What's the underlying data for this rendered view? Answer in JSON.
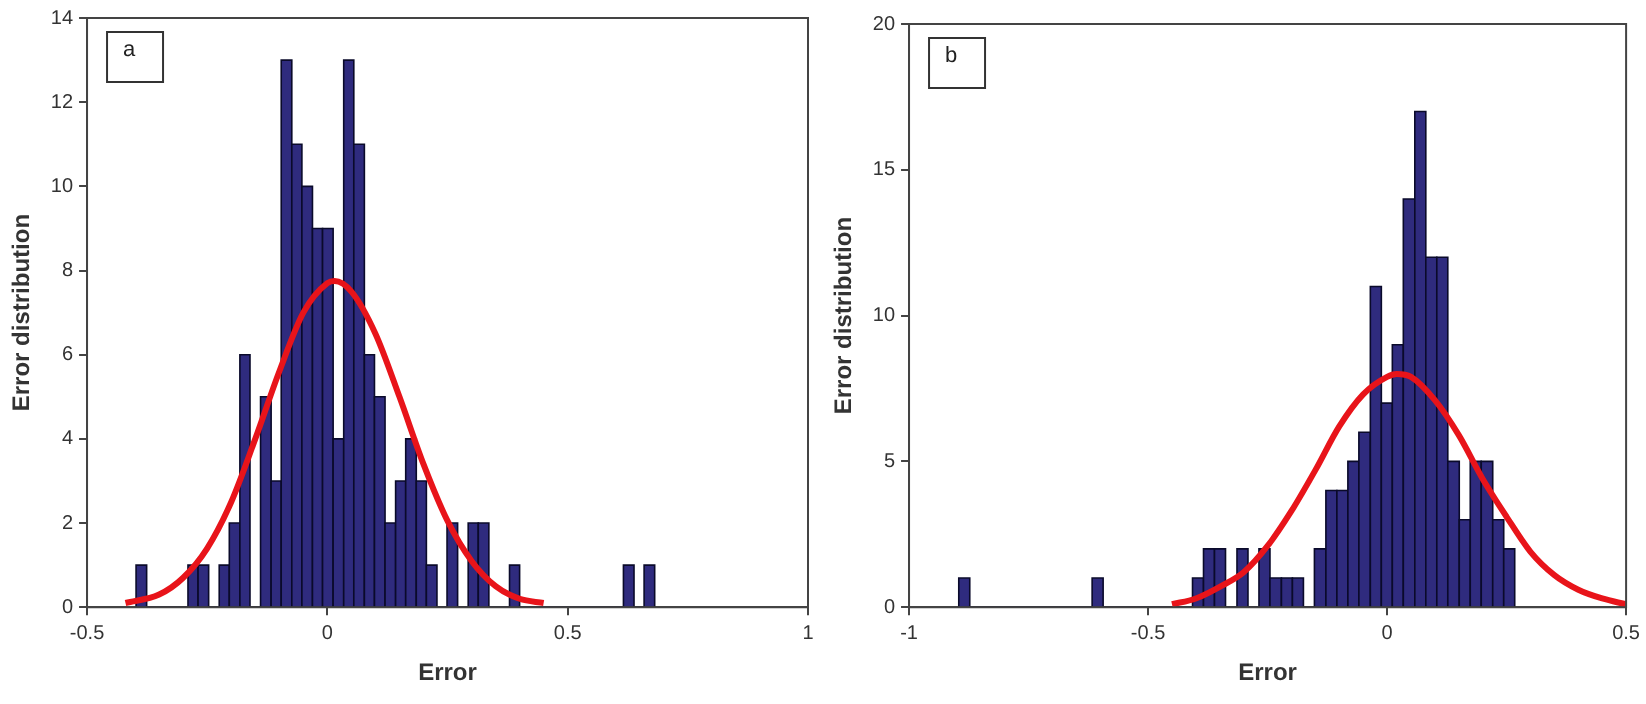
{
  "chart_data": [
    {
      "type": "histogram",
      "xlabel": "Error",
      "ylabel": "Error distribution",
      "annotations": [
        "a"
      ],
      "color": "#2f2b7e",
      "bins": [
        -0.398,
        -0.376,
        -0.355,
        -0.333,
        -0.312,
        -0.29,
        -0.269,
        -0.247,
        -0.225,
        -0.204,
        -0.182,
        -0.161,
        -0.139,
        -0.117,
        -0.096,
        -0.074,
        -0.053,
        -0.031,
        -0.01,
        0.012,
        0.034,
        0.055,
        0.077,
        0.098,
        0.12,
        0.142,
        0.163,
        0.185,
        0.206,
        0.228,
        0.249,
        0.271,
        0.293,
        0.314,
        0.336,
        0.357,
        0.379,
        0.4,
        0.422,
        0.444,
        0.465,
        0.487,
        0.508,
        0.53,
        0.551,
        0.573,
        0.595,
        0.616,
        0.638,
        0.659,
        0.681
      ],
      "values": [
        1,
        0,
        0,
        0,
        0,
        1,
        1,
        0,
        1,
        2,
        6,
        0,
        5,
        3,
        13,
        11,
        10,
        9,
        9,
        4,
        13,
        11,
        6,
        5,
        2,
        3,
        4,
        3,
        1,
        0,
        2,
        0,
        2,
        2,
        0,
        0,
        1,
        0,
        0,
        0,
        0,
        0,
        0,
        0,
        0,
        0,
        0,
        1,
        0,
        1
      ],
      "series": [
        {
          "type": "line",
          "color": "#e8141a",
          "x": [
            -0.42,
            -0.35,
            -0.3,
            -0.25,
            -0.2,
            -0.15,
            -0.1,
            -0.05,
            0,
            0.015,
            0.05,
            0.1,
            0.15,
            0.2,
            0.25,
            0.3,
            0.35,
            0.4,
            0.45
          ],
          "values": [
            0.1,
            0.3,
            0.7,
            1.4,
            2.5,
            4.0,
            5.6,
            7.0,
            7.7,
            7.75,
            7.5,
            6.5,
            5.0,
            3.4,
            2.05,
            1.1,
            0.5,
            0.2,
            0.1
          ]
        }
      ],
      "marker": "none",
      "xlim": [
        -0.5,
        1
      ],
      "xticks": [
        -0.5,
        0,
        0.5,
        1
      ],
      "ylim": [
        0,
        14
      ],
      "yticks": [
        0,
        2,
        4,
        6,
        8,
        10,
        12,
        14
      ],
      "grid": false,
      "legend": false
    },
    {
      "type": "histogram",
      "xlabel": "Error",
      "ylabel": "Error distribution",
      "annotations": [
        "b"
      ],
      "color": "#2f2b7e",
      "bins": [
        -0.896,
        -0.873,
        -0.849,
        -0.826,
        -0.803,
        -0.78,
        -0.756,
        -0.733,
        -0.71,
        -0.687,
        -0.663,
        -0.64,
        -0.617,
        -0.594,
        -0.57,
        -0.547,
        -0.524,
        -0.501,
        -0.477,
        -0.454,
        -0.431,
        -0.407,
        -0.384,
        -0.361,
        -0.338,
        -0.314,
        -0.291,
        -0.268,
        -0.245,
        -0.221,
        -0.198,
        -0.175,
        -0.152,
        -0.128,
        -0.105,
        -0.082,
        -0.059,
        -0.035,
        -0.012,
        0.011,
        0.034,
        0.058,
        0.081,
        0.104,
        0.127,
        0.151,
        0.174,
        0.197,
        0.221,
        0.244,
        0.267
      ],
      "values": [
        1,
        0,
        0,
        0,
        0,
        0,
        0,
        0,
        0,
        0,
        0,
        0,
        1,
        0,
        0,
        0,
        0,
        0,
        0,
        0,
        0,
        1,
        2,
        2,
        0,
        2,
        0,
        2,
        1,
        1,
        1,
        0,
        2,
        4,
        4,
        5,
        6,
        11,
        7,
        9,
        14,
        17,
        12,
        12,
        5,
        3,
        5,
        5,
        3,
        2
      ],
      "series": [
        {
          "type": "line",
          "color": "#e8141a",
          "x": [
            -0.45,
            -0.4,
            -0.35,
            -0.3,
            -0.25,
            -0.2,
            -0.15,
            -0.1,
            -0.05,
            0,
            0.02,
            0.05,
            0.1,
            0.15,
            0.2,
            0.25,
            0.3,
            0.35,
            0.4,
            0.45,
            0.5
          ],
          "values": [
            0.1,
            0.3,
            0.7,
            1.2,
            2.1,
            3.3,
            4.7,
            6.2,
            7.3,
            7.9,
            8,
            7.9,
            7.1,
            5.9,
            4.4,
            3.1,
            1.9,
            1.1,
            0.6,
            0.3,
            0.1
          ]
        }
      ],
      "marker": "none",
      "xlim": [
        -1,
        0.5
      ],
      "xticks": [
        -1,
        -0.5,
        0,
        0.5
      ],
      "ylim": [
        0,
        20
      ],
      "yticks": [
        0,
        5,
        10,
        15,
        20
      ],
      "grid": false,
      "legend": false
    }
  ]
}
